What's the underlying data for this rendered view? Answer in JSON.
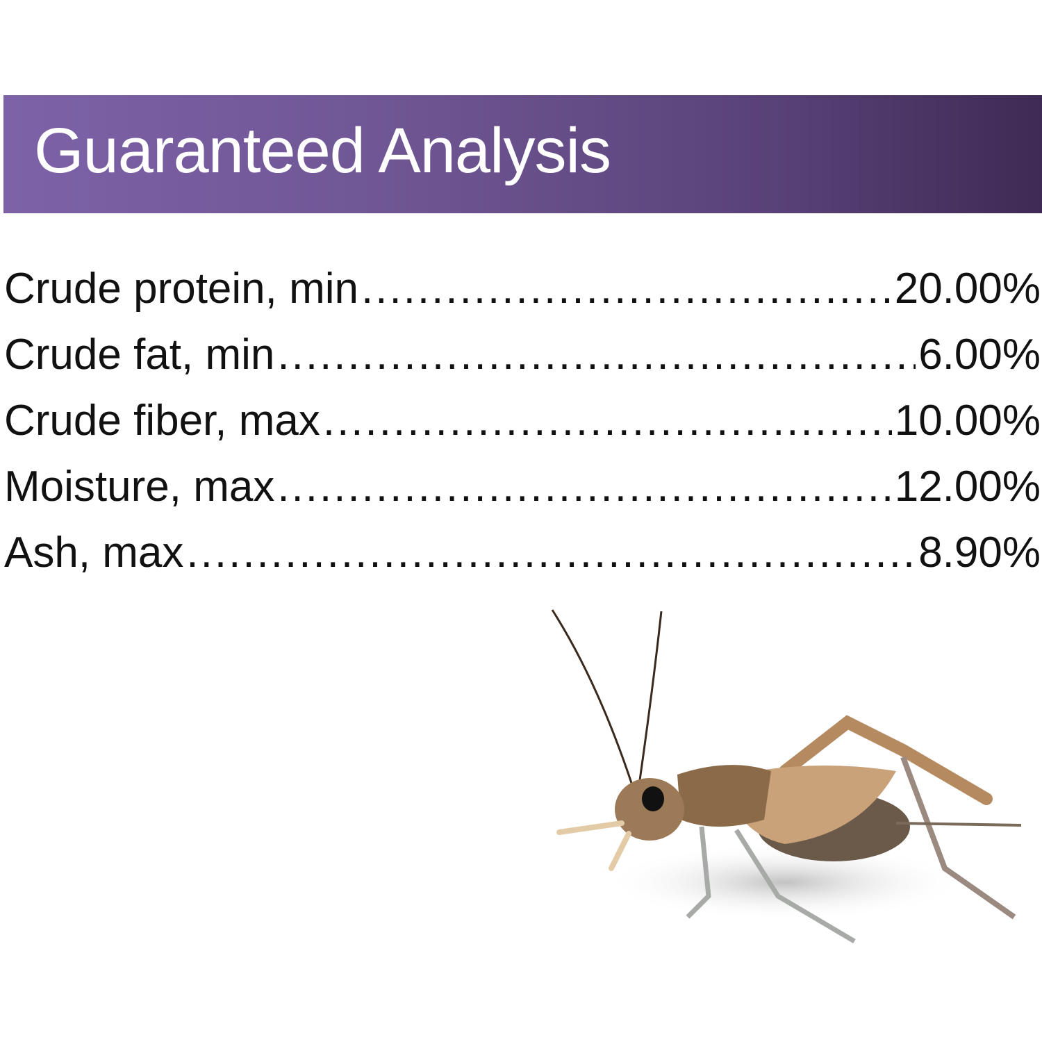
{
  "header": {
    "title": "Guaranteed Analysis",
    "gradient_start": "#7d62a8",
    "gradient_end": "#3f2a55"
  },
  "analysis": [
    {
      "label": "Crude protein, min",
      "value": "20.00%"
    },
    {
      "label": "Crude fat, min",
      "value": "6.00%"
    },
    {
      "label": "Crude fiber, max",
      "value": "10.00%"
    },
    {
      "label": "Moisture, max",
      "value": "12.00%"
    },
    {
      "label": "Ash, max",
      "value": "8.90%"
    }
  ],
  "image": {
    "subject": "cricket"
  }
}
